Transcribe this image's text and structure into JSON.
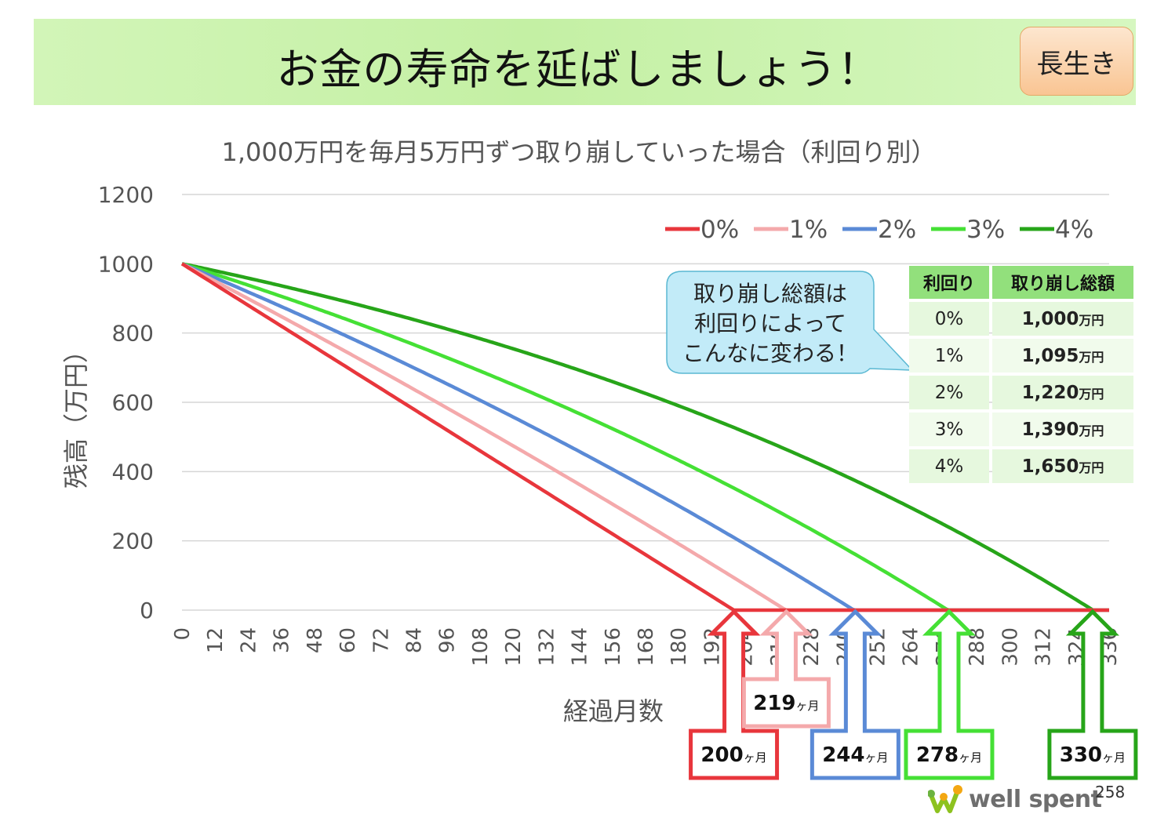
{
  "header": {
    "title": "お金の寿命を延ばしましょう！",
    "badge": "長生き"
  },
  "callout": {
    "lines": [
      "取り崩し総額は",
      "利回りによって",
      "こんなに変わる！"
    ]
  },
  "table": {
    "headers": [
      "利回り",
      "取り崩し総額"
    ],
    "unit": "万円",
    "rows": [
      {
        "rate": "0%",
        "amount": "1,000"
      },
      {
        "rate": "1%",
        "amount": "1,095"
      },
      {
        "rate": "2%",
        "amount": "1,220"
      },
      {
        "rate": "3%",
        "amount": "1,390"
      },
      {
        "rate": "4%",
        "amount": "1,650"
      }
    ]
  },
  "footer": {
    "page": "258",
    "brand": "well spent"
  },
  "colors": {
    "r0": "#e8363c",
    "r1": "#f4a9ab",
    "r2": "#5a8ad6",
    "r3": "#45e035",
    "r4": "#27a519"
  },
  "chart_data": {
    "type": "line",
    "title": "1,000万円を毎月5万円ずつ取り崩していった場合（利回り別）",
    "xlabel": "経過月数",
    "ylabel": "残高（万円）",
    "ylim": [
      0,
      1200
    ],
    "yticks": [
      0,
      200,
      400,
      600,
      800,
      1000,
      1200
    ],
    "xlim": [
      0,
      336
    ],
    "xticks": [
      0,
      12,
      24,
      36,
      48,
      60,
      72,
      84,
      96,
      108,
      120,
      132,
      144,
      156,
      168,
      180,
      192,
      204,
      216,
      228,
      240,
      252,
      264,
      276,
      288,
      300,
      312,
      324,
      336
    ],
    "grid": true,
    "legend_position": "top-right",
    "initial_balance": 1000,
    "monthly_withdrawal": 5,
    "series": [
      {
        "name": "0%",
        "annual_rate": 0.0,
        "color": "#e8363c",
        "depletion_month": 200,
        "label_text": "200",
        "label_unit": "ヶ月"
      },
      {
        "name": "1%",
        "annual_rate": 0.01,
        "color": "#f4a9ab",
        "depletion_month": 219,
        "label_text": "219",
        "label_unit": "ヶ月"
      },
      {
        "name": "2%",
        "annual_rate": 0.02,
        "color": "#5a8ad6",
        "depletion_month": 244,
        "label_text": "244",
        "label_unit": "ヶ月"
      },
      {
        "name": "3%",
        "annual_rate": 0.03,
        "color": "#45e035",
        "depletion_month": 278,
        "label_text": "278",
        "label_unit": "ヶ月"
      },
      {
        "name": "4%",
        "annual_rate": 0.04,
        "color": "#27a519",
        "depletion_month": 330,
        "label_text": "330",
        "label_unit": "ヶ月"
      }
    ]
  }
}
